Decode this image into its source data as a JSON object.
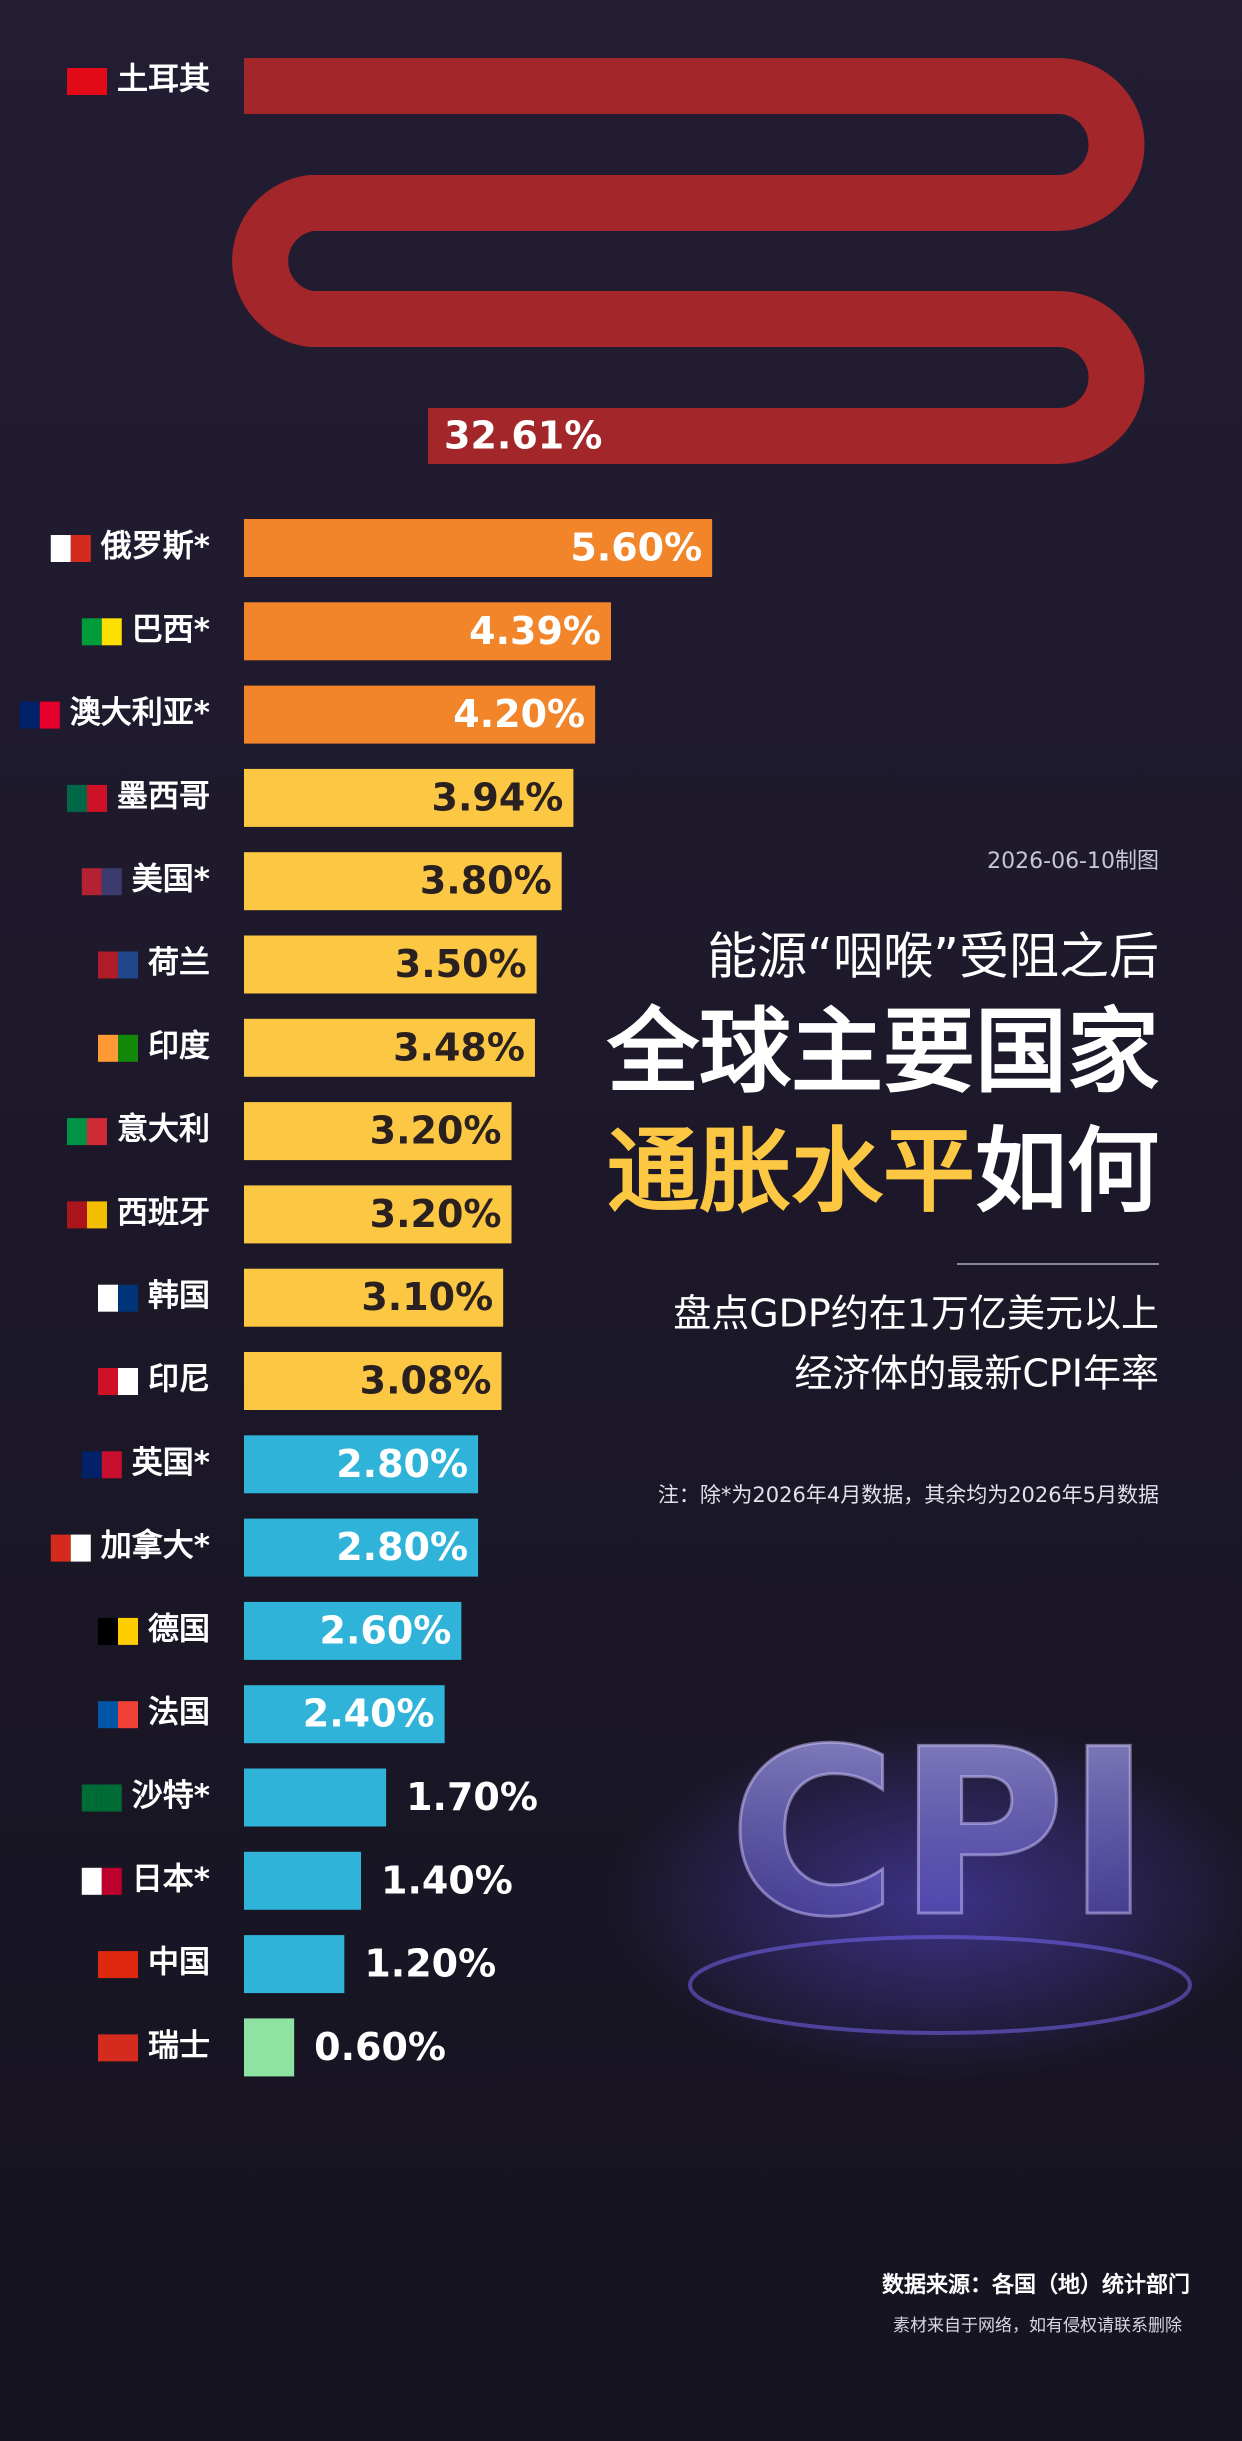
{
  "chart_data": {
    "type": "bar",
    "date_note": "2026-06-10制图",
    "kicker": "能源“咽喉”受阻之后",
    "title": "全球主要国家",
    "title_highlight": "通胀水平",
    "title_tail": "如何",
    "subtitle": [
      "盘点GDP约在1万亿美元以上",
      "经济体的最新CPI年率"
    ],
    "note": "注：除*为2026年4月数据，其余均为2026年5月数据",
    "source": "数据来源：各国（地）统计部门",
    "disclaimer": "素材来自于网络，如有侵权请联系删除",
    "graphic_label": "CPI",
    "categories": [
      "土耳其",
      "俄罗斯*",
      "巴西*",
      "澳大利亚*",
      "墨西哥",
      "美国*",
      "荷兰",
      "印度",
      "意大利",
      "西班牙",
      "韩国",
      "印尼",
      "英国*",
      "加拿大*",
      "德国",
      "法国",
      "沙特*",
      "日本*",
      "中国",
      "瑞士"
    ],
    "values": [
      32.61,
      5.6,
      4.39,
      4.2,
      3.94,
      3.8,
      3.5,
      3.48,
      3.2,
      3.2,
      3.1,
      3.08,
      2.8,
      2.8,
      2.6,
      2.4,
      1.7,
      1.4,
      1.2,
      0.6
    ],
    "value_labels": [
      "32.61%",
      "5.60%",
      "4.39%",
      "4.20%",
      "3.94%",
      "3.80%",
      "3.50%",
      "3.48%",
      "3.20%",
      "3.20%",
      "3.10%",
      "3.08%",
      "2.80%",
      "2.80%",
      "2.60%",
      "2.40%",
      "1.70%",
      "1.40%",
      "1.20%",
      "0.60%"
    ],
    "colors": [
      "#a3272a",
      "#f2852a",
      "#f2852a",
      "#f2852a",
      "#fcc843",
      "#fcc843",
      "#fcc843",
      "#fcc843",
      "#fcc843",
      "#fcc843",
      "#fcc843",
      "#fcc843",
      "#2fb3d8",
      "#2fb3d8",
      "#2fb3d8",
      "#2fb3d8",
      "#2fb3d8",
      "#2fb3d8",
      "#2fb3d8",
      "#8fe3a2"
    ]
  }
}
